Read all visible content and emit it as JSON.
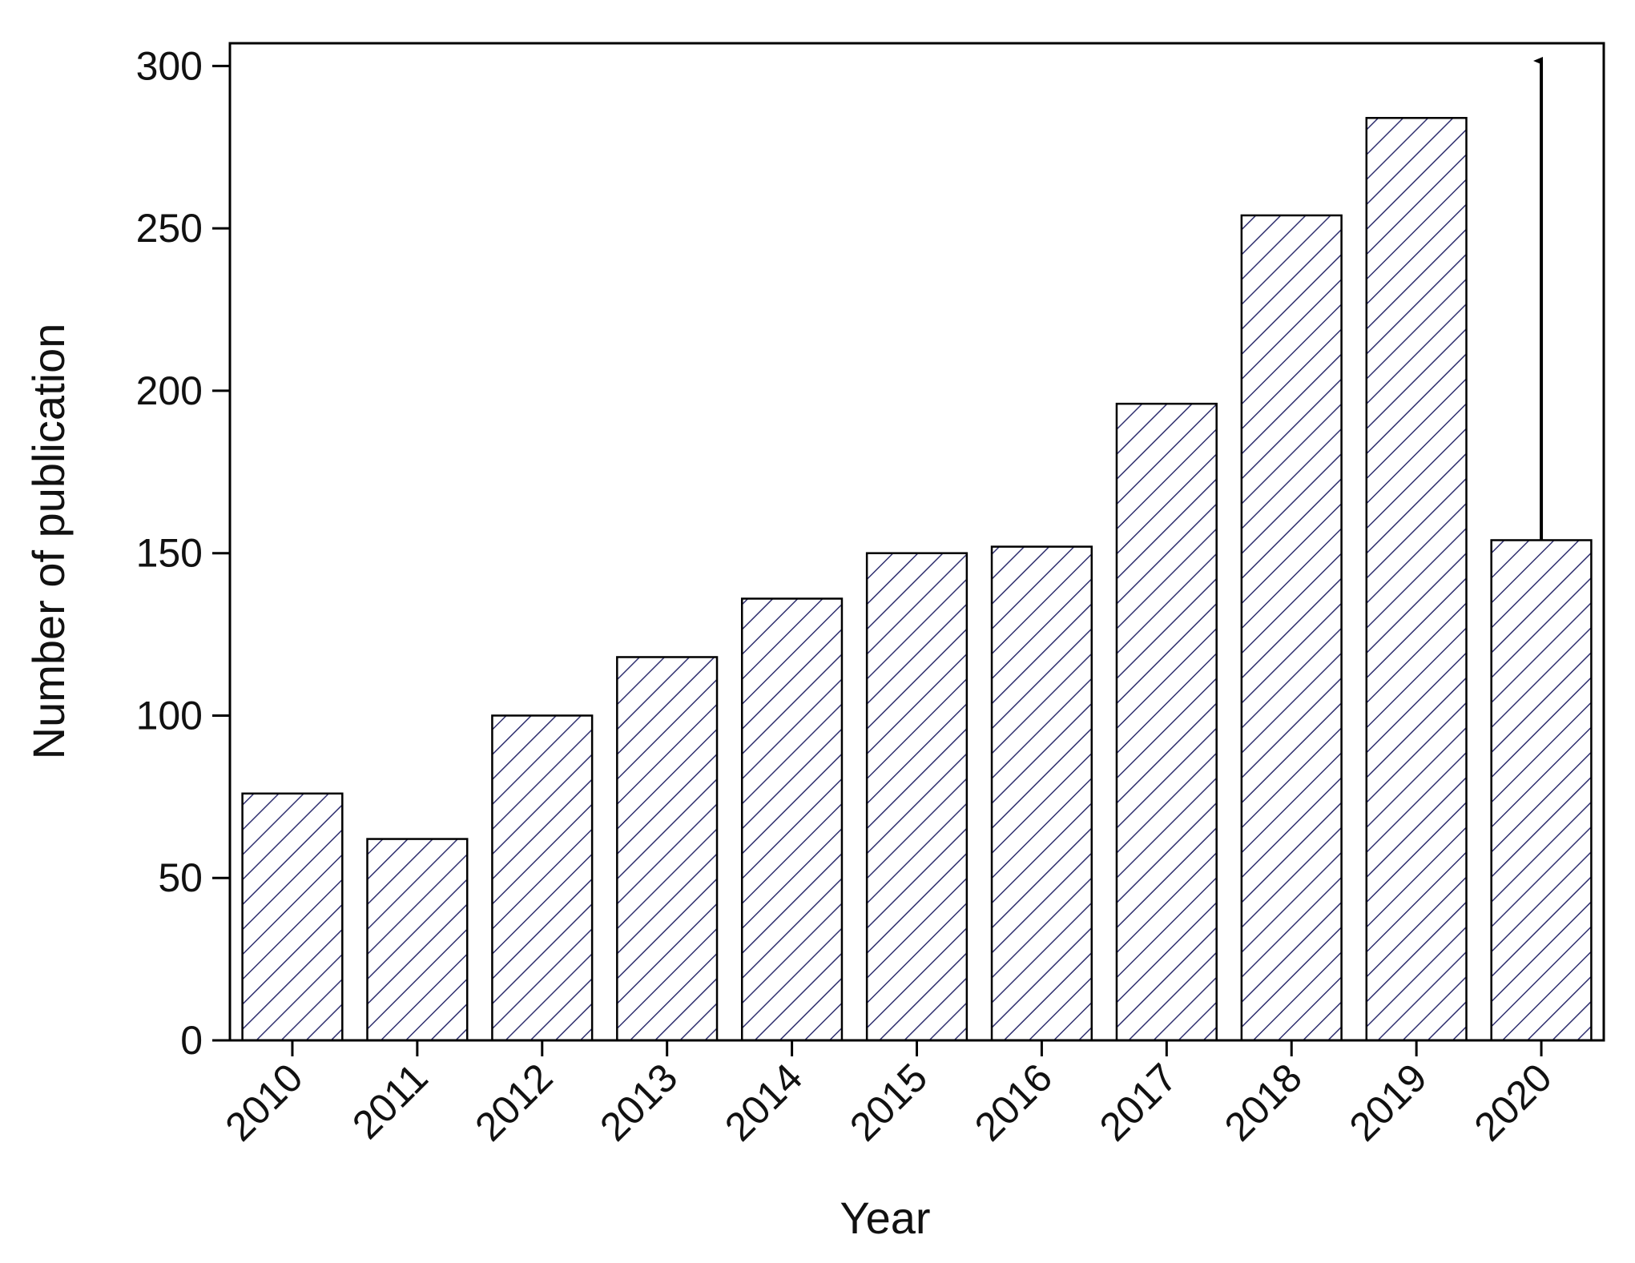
{
  "chart_data": {
    "type": "bar",
    "x_label": "Year",
    "y_label": "Number of publication",
    "categories": [
      "2010",
      "2011",
      "2012",
      "2013",
      "2014",
      "2015",
      "2016",
      "2017",
      "2018",
      "2019",
      "2020"
    ],
    "values": [
      76,
      62,
      100,
      118,
      136,
      150,
      152,
      196,
      254,
      284,
      154
    ],
    "color": "#303070",
    "ylim": [
      0,
      307
    ],
    "yticks": [
      0,
      50,
      100,
      150,
      200,
      250,
      300
    ],
    "grid": false
  }
}
